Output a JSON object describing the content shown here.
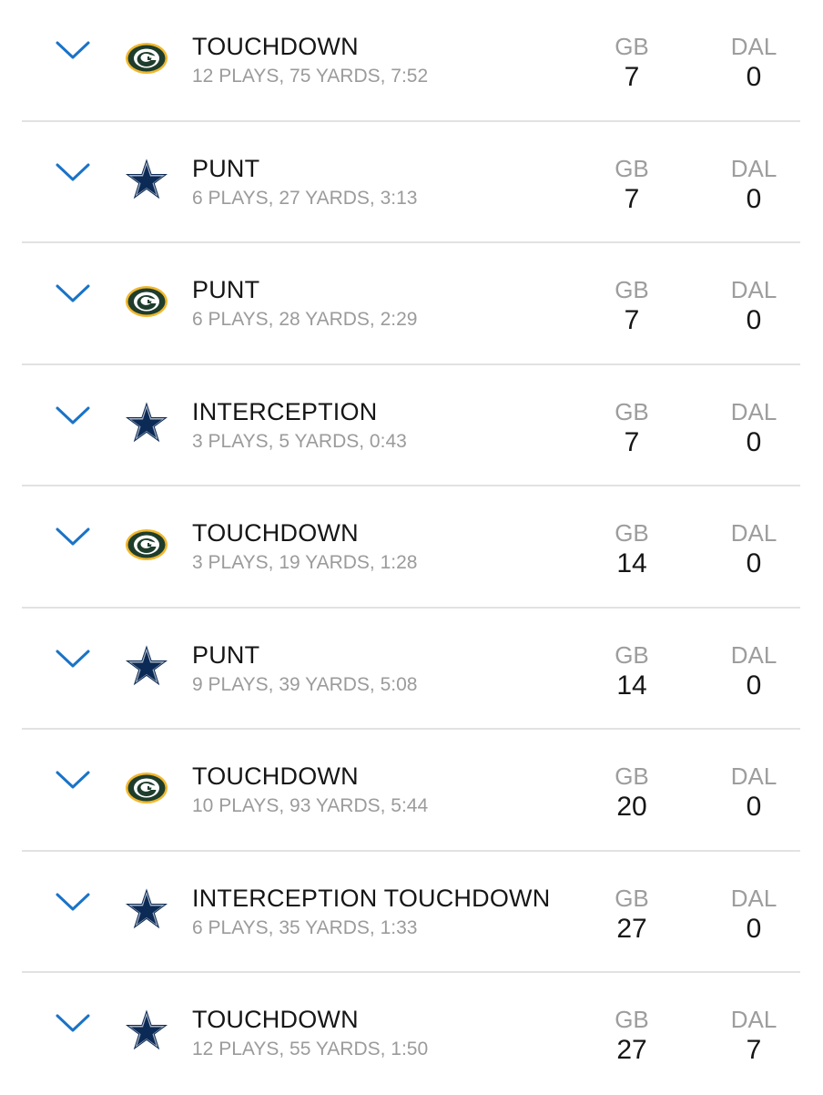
{
  "colors": {
    "accent": "#1a73c7",
    "packers_green": "#1f3d2c",
    "packers_gold": "#f1b82d",
    "cowboys_navy": "#0b2a55",
    "divider": "#e2e2e2"
  },
  "drives": [
    {
      "logo": "packers-logo-icon",
      "result": "TOUCHDOWN",
      "summary": "12 PLAYS, 75 YARDS, 7:52",
      "home_abbr": "GB",
      "home_score": "7",
      "away_abbr": "DAL",
      "away_score": "0"
    },
    {
      "logo": "cowboys-star-icon",
      "result": "PUNT",
      "summary": "6 PLAYS, 27 YARDS, 3:13",
      "home_abbr": "GB",
      "home_score": "7",
      "away_abbr": "DAL",
      "away_score": "0"
    },
    {
      "logo": "packers-logo-icon",
      "result": "PUNT",
      "summary": "6 PLAYS, 28 YARDS, 2:29",
      "home_abbr": "GB",
      "home_score": "7",
      "away_abbr": "DAL",
      "away_score": "0"
    },
    {
      "logo": "cowboys-star-icon",
      "result": "INTERCEPTION",
      "summary": "3 PLAYS, 5 YARDS, 0:43",
      "home_abbr": "GB",
      "home_score": "7",
      "away_abbr": "DAL",
      "away_score": "0"
    },
    {
      "logo": "packers-logo-icon",
      "result": "TOUCHDOWN",
      "summary": "3 PLAYS, 19 YARDS, 1:28",
      "home_abbr": "GB",
      "home_score": "14",
      "away_abbr": "DAL",
      "away_score": "0"
    },
    {
      "logo": "cowboys-star-icon",
      "result": "PUNT",
      "summary": "9 PLAYS, 39 YARDS, 5:08",
      "home_abbr": "GB",
      "home_score": "14",
      "away_abbr": "DAL",
      "away_score": "0"
    },
    {
      "logo": "packers-logo-icon",
      "result": "TOUCHDOWN",
      "summary": "10 PLAYS, 93 YARDS, 5:44",
      "home_abbr": "GB",
      "home_score": "20",
      "away_abbr": "DAL",
      "away_score": "0"
    },
    {
      "logo": "cowboys-star-icon",
      "result": "INTERCEPTION TOUCHDOWN",
      "summary": "6 PLAYS, 35 YARDS, 1:33",
      "home_abbr": "GB",
      "home_score": "27",
      "away_abbr": "DAL",
      "away_score": "0"
    },
    {
      "logo": "cowboys-star-icon",
      "result": "TOUCHDOWN",
      "summary": "12 PLAYS, 55 YARDS, 1:50",
      "home_abbr": "GB",
      "home_score": "27",
      "away_abbr": "DAL",
      "away_score": "7"
    }
  ]
}
